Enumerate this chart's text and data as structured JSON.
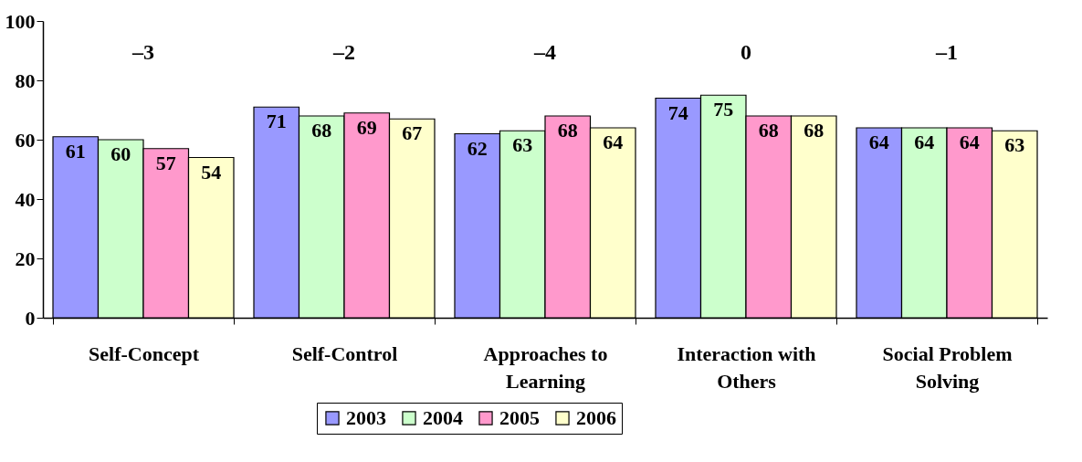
{
  "chart_data": {
    "type": "bar",
    "categories": [
      "Self-Concept",
      "Self-Control",
      "Approaches to Learning",
      "Interaction with Others",
      "Social Problem Solving"
    ],
    "series": [
      {
        "name": "2003",
        "color": "#9999ff",
        "values": [
          61,
          71,
          62,
          74,
          64
        ]
      },
      {
        "name": "2004",
        "color": "#ccffcc",
        "values": [
          60,
          68,
          63,
          75,
          64
        ]
      },
      {
        "name": "2005",
        "color": "#ff99cc",
        "values": [
          57,
          69,
          68,
          68,
          64
        ]
      },
      {
        "name": "2006",
        "color": "#ffffcc",
        "values": [
          54,
          67,
          64,
          68,
          63
        ]
      }
    ],
    "ylim": [
      0,
      100
    ],
    "yticks": [
      0,
      20,
      40,
      60,
      80,
      100
    ],
    "grid": false,
    "legend": "bottom",
    "data_labels": true,
    "annotations": [
      "–3",
      "–2",
      "–4",
      "0",
      "–1"
    ]
  }
}
